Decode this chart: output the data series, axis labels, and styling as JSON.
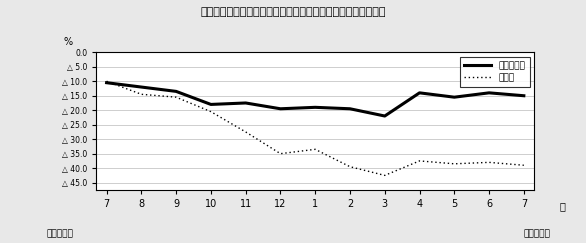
{
  "title": "第２図　所定外労働時間対前年同月比の推移（規模５人以上）",
  "xlabel_right": "月",
  "ylabel": "%",
  "x_labels": [
    "7",
    "8",
    "9",
    "10",
    "11",
    "12",
    "1",
    "2",
    "3",
    "4",
    "5",
    "6",
    "7"
  ],
  "bottom_left": "平成２０年",
  "bottom_right": "平成２１年",
  "legend_solid": "調査産業計",
  "legend_dotted": "製造業",
  "y_ticks": [
    0.0,
    5.0,
    10.0,
    15.0,
    20.0,
    25.0,
    30.0,
    35.0,
    40.0,
    45.0
  ],
  "y_tick_labels": [
    "0.0",
    "△ 5.0",
    "△ 10.0",
    "△ 15.0",
    "△ 20.0",
    "△ 25.0",
    "△ 30.0",
    "△ 35.0",
    "△ 40.0",
    "△ 45.0"
  ],
  "ylim_min": 0.0,
  "ylim_max": 47.5,
  "series_solid": [
    10.5,
    12.0,
    13.5,
    18.0,
    17.5,
    19.5,
    19.0,
    19.5,
    22.0,
    14.0,
    15.5,
    14.0,
    15.0
  ],
  "series_dotted": [
    10.0,
    14.5,
    15.5,
    20.5,
    27.5,
    35.0,
    33.5,
    39.5,
    42.5,
    37.5,
    38.5,
    38.0,
    39.0
  ],
  "line_color": "#000000",
  "bg_color": "#e8e8e8",
  "plot_bg": "#ffffff"
}
